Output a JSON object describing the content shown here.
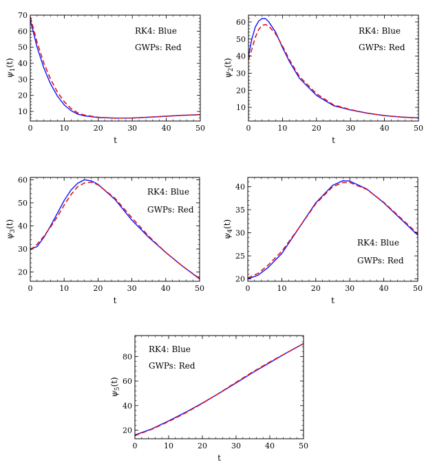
{
  "colors": {
    "rk4": "#1a1aff",
    "gwps": "#e01010",
    "frame": "#000000"
  },
  "chart_data": [
    {
      "type": "line",
      "xlabel": "t",
      "ylabel_base": "ψ",
      "ylabel_sub": "1",
      "ylabel_tail": "(t)",
      "xlim": [
        0,
        50
      ],
      "ylim": [
        4,
        70
      ],
      "xticks": [
        0,
        10,
        20,
        30,
        40,
        50
      ],
      "yticks": [
        10,
        20,
        30,
        40,
        50,
        60,
        70
      ],
      "legend": [
        "RK4:  Blue",
        "GWPs: Red"
      ],
      "legend_position": "top-right",
      "series": [
        {
          "name": "RK4",
          "style": "solid",
          "x": [
            0,
            2,
            4,
            6,
            8,
            10,
            12,
            14,
            16,
            20,
            25,
            30,
            35,
            40,
            45,
            50
          ],
          "y": [
            67,
            50,
            37,
            27,
            19.5,
            14,
            10.5,
            8.2,
            7.2,
            6.2,
            5.8,
            5.9,
            6.4,
            7.0,
            7.6,
            8.0
          ]
        },
        {
          "name": "GWPs",
          "style": "dashed",
          "x": [
            0,
            2,
            4,
            6,
            8,
            10,
            12,
            14,
            16,
            20,
            25,
            30,
            35,
            40,
            45,
            50
          ],
          "y": [
            69,
            53,
            40,
            30,
            22,
            16,
            11.8,
            9,
            7.7,
            6.3,
            5.8,
            5.9,
            6.4,
            7.0,
            7.6,
            8.0
          ]
        }
      ]
    },
    {
      "type": "line",
      "xlabel": "t",
      "ylabel_base": "ψ",
      "ylabel_sub": "2",
      "ylabel_tail": "(t)",
      "xlim": [
        0,
        50
      ],
      "ylim": [
        2,
        64
      ],
      "xticks": [
        0,
        10,
        20,
        30,
        40,
        50
      ],
      "yticks": [
        10,
        20,
        30,
        40,
        50,
        60
      ],
      "legend": [
        "RK4:  Blue",
        "GWPs: Red"
      ],
      "legend_position": "top-right",
      "series": [
        {
          "name": "RK4",
          "style": "solid",
          "x": [
            0,
            1,
            2,
            3,
            4,
            5,
            6,
            8,
            10,
            12,
            15,
            20,
            25,
            30,
            35,
            40,
            45,
            50
          ],
          "y": [
            40,
            50,
            57,
            60.5,
            62,
            62,
            60,
            54,
            45,
            37,
            27,
            17,
            11,
            8.5,
            6.6,
            5.2,
            4.3,
            3.8
          ]
        },
        {
          "name": "GWPs",
          "style": "dashed",
          "x": [
            0,
            1,
            2,
            3,
            4,
            5,
            6,
            8,
            10,
            12,
            15,
            20,
            25,
            30,
            35,
            40,
            45,
            50
          ],
          "y": [
            38,
            44,
            51,
            55.5,
            58,
            58.5,
            57.5,
            53,
            46,
            38,
            28,
            18,
            11.5,
            8.7,
            6.6,
            5.2,
            4.3,
            3.8
          ]
        }
      ]
    },
    {
      "type": "line",
      "xlabel": "t",
      "ylabel_base": "ψ",
      "ylabel_sub": "3",
      "ylabel_tail": "(t)",
      "xlim": [
        0,
        50
      ],
      "ylim": [
        16,
        61
      ],
      "xticks": [
        0,
        10,
        20,
        30,
        40,
        50
      ],
      "yticks": [
        20,
        30,
        40,
        50,
        60
      ],
      "legend": [
        "RK4:  Blue",
        "GWPs: Red"
      ],
      "legend_position": "top-right",
      "series": [
        {
          "name": "RK4",
          "style": "solid",
          "x": [
            0,
            2,
            4,
            6,
            8,
            10,
            12,
            14,
            16,
            18,
            20,
            25,
            30,
            35,
            40,
            45,
            50
          ],
          "y": [
            30,
            31,
            35,
            40,
            45.5,
            51,
            55.5,
            58.5,
            60,
            59.5,
            58,
            51.5,
            42.5,
            35,
            28.5,
            22.5,
            17
          ]
        },
        {
          "name": "GWPs",
          "style": "dashed",
          "x": [
            0,
            2,
            4,
            6,
            8,
            10,
            12,
            14,
            16,
            18,
            20,
            25,
            30,
            35,
            40,
            45,
            50
          ],
          "y": [
            29.5,
            32,
            35.5,
            39.5,
            44,
            49,
            53.5,
            57,
            58.6,
            58.9,
            57.8,
            52,
            43.5,
            35.5,
            28.5,
            22.5,
            17.2
          ]
        }
      ]
    },
    {
      "type": "line",
      "xlabel": "t",
      "ylabel_base": "ψ",
      "ylabel_sub": "4",
      "ylabel_tail": "(t)",
      "xlim": [
        0,
        50
      ],
      "ylim": [
        19.5,
        42
      ],
      "xticks": [
        0,
        10,
        20,
        30,
        40,
        50
      ],
      "yticks": [
        20,
        25,
        30,
        35,
        40
      ],
      "legend": [
        "RK4:  Blue",
        "GWPs: Red"
      ],
      "legend_position": "bottom-right",
      "series": [
        {
          "name": "RK4",
          "style": "solid",
          "x": [
            0,
            3,
            6,
            10,
            15,
            20,
            25,
            28,
            30,
            35,
            40,
            45,
            50
          ],
          "y": [
            20,
            20.8,
            22.5,
            25.5,
            31,
            36.5,
            40.3,
            41.3,
            41.2,
            39.5,
            36.5,
            33,
            29.5
          ]
        },
        {
          "name": "GWPs",
          "style": "dashed",
          "x": [
            0,
            3,
            6,
            10,
            15,
            20,
            25,
            28,
            30,
            35,
            40,
            45,
            50
          ],
          "y": [
            20.2,
            21.2,
            23,
            26,
            31,
            36.3,
            40,
            40.9,
            40.9,
            39.4,
            36.6,
            33.2,
            29.8
          ]
        }
      ]
    },
    {
      "type": "line",
      "xlabel": "t",
      "ylabel_base": "ψ",
      "ylabel_sub": "5",
      "ylabel_tail": "(t)",
      "xlim": [
        0,
        50
      ],
      "ylim": [
        13,
        97
      ],
      "xticks": [
        0,
        10,
        20,
        30,
        40,
        50
      ],
      "yticks": [
        20,
        40,
        60,
        80
      ],
      "legend": [
        "RK4:  Blue",
        "GWPs: Red"
      ],
      "legend_position": "top-left",
      "series": [
        {
          "name": "RK4",
          "style": "solid",
          "x": [
            0,
            5,
            10,
            15,
            20,
            25,
            30,
            35,
            40,
            45,
            50
          ],
          "y": [
            16,
            21,
            27.5,
            34.5,
            42,
            50,
            58.5,
            67,
            75,
            83,
            90.5
          ]
        },
        {
          "name": "GWPs",
          "style": "dashed",
          "x": [
            0,
            5,
            10,
            15,
            20,
            25,
            30,
            35,
            40,
            45,
            50
          ],
          "y": [
            15.5,
            20.7,
            27,
            34,
            41.8,
            50.2,
            59,
            67.5,
            75.5,
            83,
            90.5
          ]
        }
      ]
    }
  ]
}
